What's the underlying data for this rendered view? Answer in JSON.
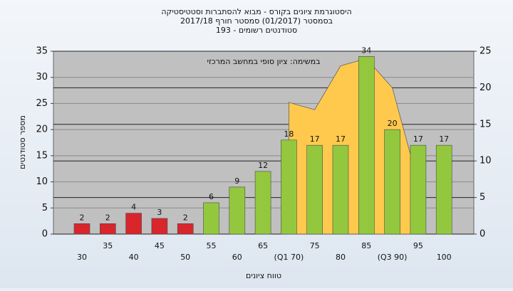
{
  "chart_data": {
    "type": "bar",
    "title": "היסטוגרמת ציונים בקורס - מבוא להסתברות וסטטיסטיקה",
    "subtitle": "בסמסטר  (01/2017)  סמסטר חורף 2017/18",
    "subtitle2": "סטודנטים רשומים - 193",
    "annotation": "במשימה: ציון סופי במחשב המרכזי",
    "ylabel": "מספר סטודנטים",
    "xlabel": "טווח ציונים",
    "categories": [
      "30",
      "35",
      "40",
      "45",
      "50",
      "55",
      "60",
      "65",
      "(Q1 70)",
      "75",
      "80",
      "85",
      "(Q3 90)",
      "95",
      "100"
    ],
    "values": [
      2,
      2,
      4,
      3,
      2,
      6,
      9,
      12,
      18,
      17,
      17,
      34,
      20,
      17,
      17
    ],
    "bar_colors": [
      "#d8262c",
      "#d8262c",
      "#d8262c",
      "#d8262c",
      "#d8262c",
      "#93c83e",
      "#93c83e",
      "#93c83e",
      "#93c83e",
      "#93c83e",
      "#93c83e",
      "#93c83e",
      "#93c83e",
      "#93c83e",
      "#93c83e"
    ],
    "area": {
      "axis": "y2",
      "color": "#ffc94d",
      "values": [
        null,
        null,
        null,
        null,
        null,
        null,
        null,
        null,
        18,
        17,
        23,
        24,
        20,
        7,
        null
      ]
    },
    "ylim": [
      0,
      35
    ],
    "yticks": [
      0,
      5,
      10,
      15,
      20,
      25,
      30,
      35
    ],
    "y2lim": [
      0,
      25
    ],
    "y2ticks": [
      0,
      5,
      10,
      15,
      20,
      25
    ],
    "grid": true
  }
}
